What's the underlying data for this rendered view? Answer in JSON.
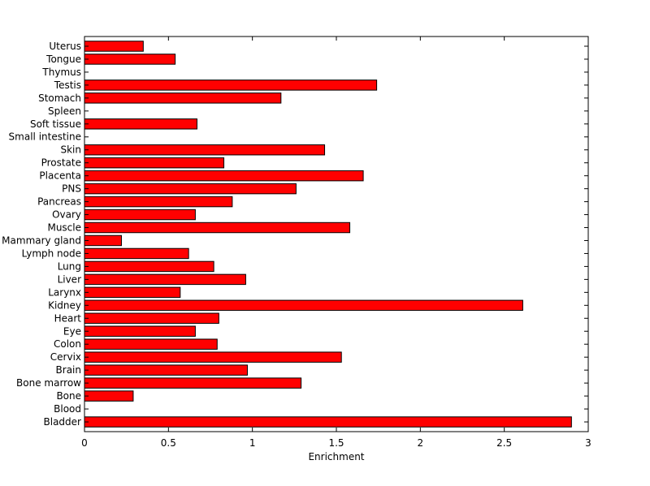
{
  "chart_data": {
    "type": "bar",
    "orientation": "horizontal",
    "categories": [
      "Bladder",
      "Blood",
      "Bone",
      "Bone marrow",
      "Brain",
      "Cervix",
      "Colon",
      "Eye",
      "Heart",
      "Kidney",
      "Larynx",
      "Liver",
      "Lung",
      "Lymph node",
      "Mammary gland",
      "Muscle",
      "Ovary",
      "Pancreas",
      "PNS",
      "Placenta",
      "Prostate",
      "Skin",
      "Small intestine",
      "Soft tissue",
      "Spleen",
      "Stomach",
      "Testis",
      "Thymus",
      "Tongue",
      "Uterus"
    ],
    "values": [
      2.9,
      0,
      0.29,
      1.29,
      0.97,
      1.53,
      0.79,
      0.66,
      0.8,
      2.61,
      0.57,
      0.96,
      0.77,
      0.62,
      0.22,
      1.58,
      0.66,
      0.88,
      1.26,
      1.66,
      0.83,
      1.43,
      0,
      0.67,
      0,
      1.17,
      1.74,
      0,
      0.54,
      0.35
    ],
    "xlabel": "Enrichment",
    "ylabel": "",
    "xlim": [
      0,
      3
    ],
    "xticks": [
      "0",
      "0.5",
      "1",
      "1.5",
      "2",
      "2.5",
      "3"
    ],
    "bar_color": "#ff0000",
    "grid": false,
    "legend": "none"
  }
}
